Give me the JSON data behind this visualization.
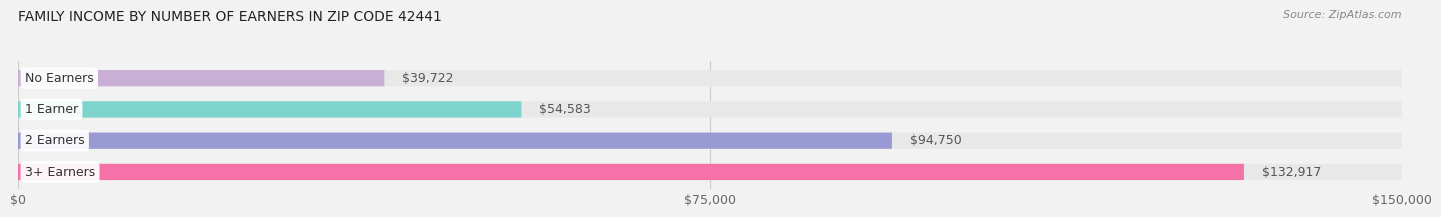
{
  "title": "FAMILY INCOME BY NUMBER OF EARNERS IN ZIP CODE 42441",
  "source": "Source: ZipAtlas.com",
  "categories": [
    "No Earners",
    "1 Earner",
    "2 Earners",
    "3+ Earners"
  ],
  "values": [
    39722,
    54583,
    94750,
    132917
  ],
  "bar_colors": [
    "#c9aed6",
    "#7dd4cc",
    "#9999d4",
    "#f472a8"
  ],
  "value_labels": [
    "$39,722",
    "$54,583",
    "$94,750",
    "$132,917"
  ],
  "xlim": [
    0,
    150000
  ],
  "xticks": [
    0,
    75000,
    150000
  ],
  "xtick_labels": [
    "$0",
    "$75,000",
    "$150,000"
  ],
  "bg_color": "#f2f2f2",
  "bar_bg_color": "#e8e8e8",
  "title_fontsize": 10,
  "source_fontsize": 8,
  "bar_height": 0.52
}
